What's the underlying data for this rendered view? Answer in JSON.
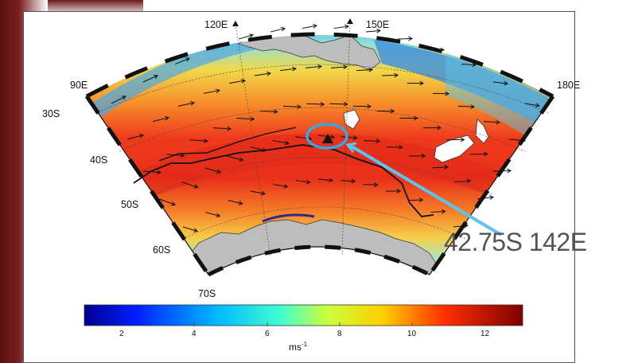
{
  "map": {
    "lon_labels": [
      "90E",
      "120E",
      "150E",
      "180E"
    ],
    "lat_labels": [
      "30S",
      "40S",
      "50S",
      "60S",
      "70S"
    ]
  },
  "colorbar": {
    "ticks": [
      "2",
      "4",
      "6",
      "8",
      "10",
      "12"
    ],
    "unit_base": "ms",
    "unit_exp": "-1"
  },
  "annotation": {
    "text": "42.75S 142E",
    "color": "#4ab7e8"
  },
  "colors": {
    "land": "#bdbdbd",
    "ring": "#3aa6e0"
  }
}
